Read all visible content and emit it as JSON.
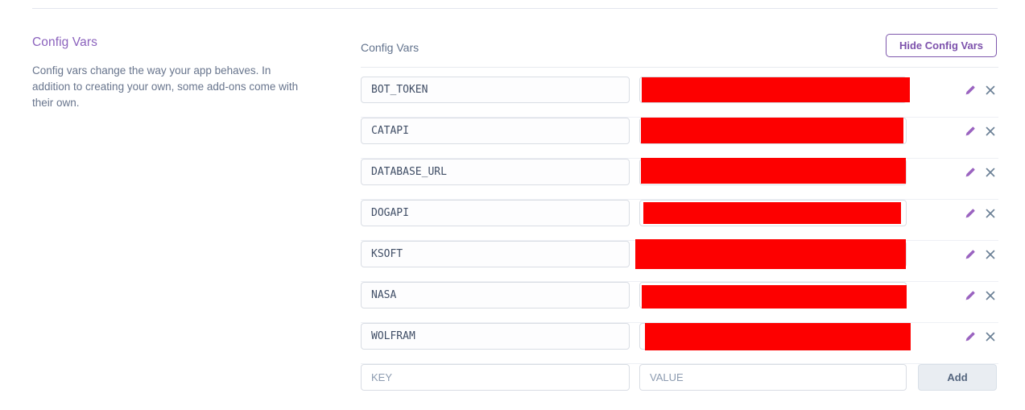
{
  "sidebar": {
    "title": "Config Vars",
    "description": "Config vars change the way your app behaves. In addition to creating your own, some add-ons come with their own."
  },
  "main": {
    "heading": "Config Vars",
    "hide_button_label": "Hide Config Vars",
    "config_vars": [
      {
        "key": "BOT_TOKEN",
        "value_redacted": true
      },
      {
        "key": "CATAPI",
        "value_redacted": true
      },
      {
        "key": "DATABASE_URL",
        "value_redacted": true
      },
      {
        "key": "DOGAPI",
        "value_redacted": true
      },
      {
        "key": "KSOFT",
        "value_redacted": true
      },
      {
        "key": "NASA",
        "value_redacted": true
      },
      {
        "key": "WOLFRAM",
        "value_redacted": true
      }
    ],
    "add_row": {
      "key_placeholder": "KEY",
      "value_placeholder": "VALUE",
      "add_label": "Add"
    }
  },
  "icons": {
    "edit": "pencil-icon",
    "remove": "x-icon"
  },
  "colors": {
    "accent_purple": "#7d52ac",
    "heading_purple": "#8b62bd",
    "pencil_purple": "#9a63c0",
    "x_gray": "#6b8096",
    "redaction_red": "#fd0000",
    "muted_text": "#68758d",
    "label_text": "#62738d"
  }
}
